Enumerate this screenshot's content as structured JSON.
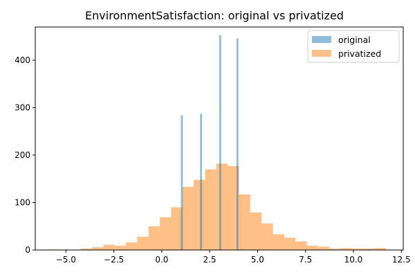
{
  "chart_data": {
    "type": "bar",
    "title": "EnvironmentSatisfaction: original vs privatized",
    "xlabel": "",
    "ylabel": "",
    "xlim": [
      -6.6,
      12.6
    ],
    "ylim": [
      0,
      470
    ],
    "grid": false,
    "legend_position": "top-right",
    "x_ticks": [
      {
        "value": -5.0,
        "label": "−5.0"
      },
      {
        "value": -2.5,
        "label": "−2.5"
      },
      {
        "value": 0.0,
        "label": "0.0"
      },
      {
        "value": 2.5,
        "label": "2.5"
      },
      {
        "value": 5.0,
        "label": "5.0"
      },
      {
        "value": 7.5,
        "label": "7.5"
      },
      {
        "value": 10.0,
        "label": "10.0"
      },
      {
        "value": 12.5,
        "label": "12.5"
      }
    ],
    "y_ticks": [
      {
        "value": 0,
        "label": "0"
      },
      {
        "value": 100,
        "label": "100"
      },
      {
        "value": 200,
        "label": "200"
      },
      {
        "value": 300,
        "label": "300"
      },
      {
        "value": 400,
        "label": "400"
      }
    ],
    "series": [
      {
        "name": "original",
        "color": "#1f77b4",
        "opacity": 0.5,
        "bin_width": 0.1,
        "bins": [
          {
            "x0": 1.0,
            "value": 284
          },
          {
            "x0": 2.0,
            "value": 287
          },
          {
            "x0": 3.0,
            "value": 453
          },
          {
            "x0": 3.9,
            "value": 446
          }
        ]
      },
      {
        "name": "privatized",
        "color": "#ff7f0e",
        "opacity": 0.5,
        "bin_width": 0.59,
        "bins": [
          {
            "x0": -6.0,
            "value": 1
          },
          {
            "x0": -5.41,
            "value": 1
          },
          {
            "x0": -4.82,
            "value": 0
          },
          {
            "x0": -4.23,
            "value": 3
          },
          {
            "x0": -3.64,
            "value": 6
          },
          {
            "x0": -3.05,
            "value": 11
          },
          {
            "x0": -2.46,
            "value": 9
          },
          {
            "x0": -1.87,
            "value": 16
          },
          {
            "x0": -1.28,
            "value": 28
          },
          {
            "x0": -0.69,
            "value": 50
          },
          {
            "x0": -0.1,
            "value": 69
          },
          {
            "x0": 0.49,
            "value": 90
          },
          {
            "x0": 1.08,
            "value": 133
          },
          {
            "x0": 1.67,
            "value": 148
          },
          {
            "x0": 2.26,
            "value": 170
          },
          {
            "x0": 2.85,
            "value": 182
          },
          {
            "x0": 3.44,
            "value": 177
          },
          {
            "x0": 4.03,
            "value": 117
          },
          {
            "x0": 4.62,
            "value": 79
          },
          {
            "x0": 5.21,
            "value": 56
          },
          {
            "x0": 5.8,
            "value": 33
          },
          {
            "x0": 6.39,
            "value": 26
          },
          {
            "x0": 6.98,
            "value": 18
          },
          {
            "x0": 7.57,
            "value": 9
          },
          {
            "x0": 8.16,
            "value": 7
          },
          {
            "x0": 8.75,
            "value": 3
          },
          {
            "x0": 9.34,
            "value": 4
          },
          {
            "x0": 9.93,
            "value": 3
          },
          {
            "x0": 10.52,
            "value": 3
          },
          {
            "x0": 11.11,
            "value": 4
          }
        ]
      }
    ]
  }
}
